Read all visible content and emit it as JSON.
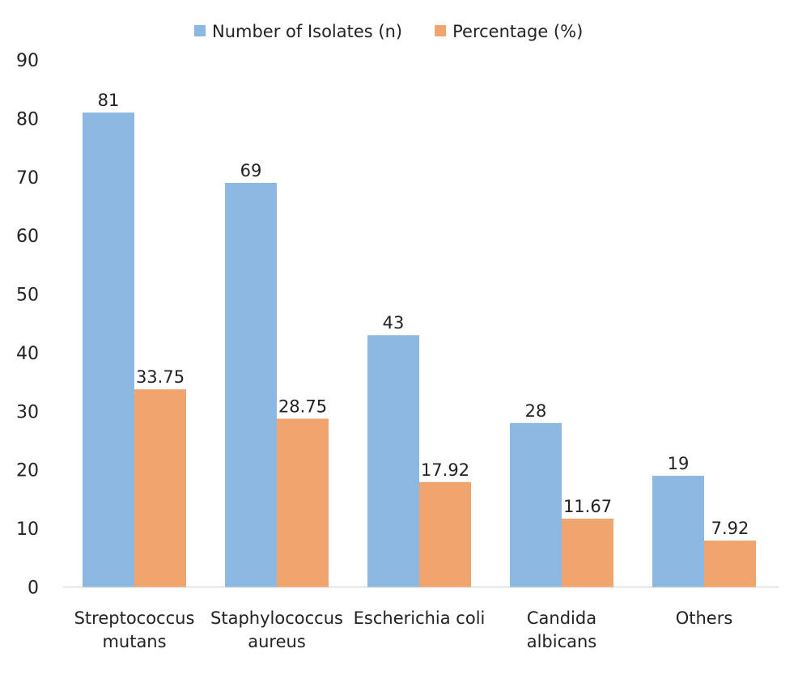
{
  "chart_data": {
    "type": "bar",
    "title": "",
    "xlabel": "",
    "ylabel": "",
    "categories": [
      [
        "Streptococcus",
        "mutans"
      ],
      [
        "Staphylococcus",
        "aureus"
      ],
      [
        "Escherichia coli"
      ],
      [
        "Candida",
        "albicans"
      ],
      [
        "Others"
      ]
    ],
    "series": [
      {
        "name": "Number of Isolates (n)",
        "color": "#8DB8E1",
        "values": [
          81,
          69,
          43,
          28,
          19
        ],
        "labels": [
          "81",
          "69",
          "43",
          "28",
          "19"
        ]
      },
      {
        "name": "Percentage (%)",
        "color": "#F0A56F",
        "values": [
          33.75,
          28.75,
          17.92,
          11.67,
          7.92
        ],
        "labels": [
          "33.75",
          "28.75",
          "17.92",
          "11.67",
          "7.92"
        ]
      }
    ],
    "ylim": [
      0,
      90
    ],
    "yticks": [
      0,
      10,
      20,
      30,
      40,
      50,
      60,
      70,
      80,
      90
    ],
    "grid": false,
    "legend": "top-center"
  }
}
